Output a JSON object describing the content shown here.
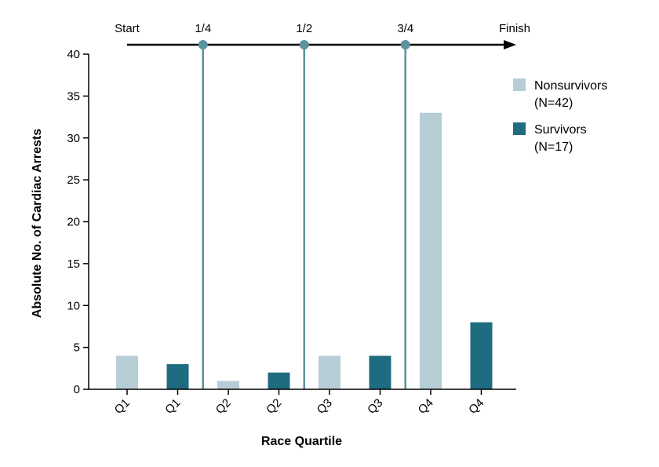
{
  "chart_data": {
    "type": "bar",
    "categories": [
      "Q1",
      "Q1",
      "Q2",
      "Q2",
      "Q3",
      "Q3",
      "Q4",
      "Q4"
    ],
    "values": [
      4,
      3,
      1,
      2,
      4,
      4,
      33,
      8
    ],
    "bar_series": [
      "nonsurvivors",
      "survivors",
      "nonsurvivors",
      "survivors",
      "nonsurvivors",
      "survivors",
      "nonsurvivors",
      "survivors"
    ],
    "series": [
      {
        "key": "nonsurvivors",
        "name": "Nonsurvivors",
        "count_label": "(N=42)",
        "color": "#b7cdd6"
      },
      {
        "key": "survivors",
        "name": "Survivors",
        "count_label": "(N=17)",
        "color": "#1f6b80"
      }
    ],
    "xlabel": "Race Quartile",
    "ylabel": "Absolute No. of Cardiac Arrests",
    "ylim": [
      0,
      40
    ],
    "yticks": [
      0,
      5,
      10,
      15,
      20,
      25,
      30,
      35,
      40
    ],
    "legend_position": "top-right",
    "grid": false,
    "progress_axis": {
      "labels": [
        "Start",
        "1/4",
        "1/2",
        "3/4",
        "Finish"
      ],
      "markers": [
        {
          "label": "1/4",
          "after_bar": 1
        },
        {
          "label": "1/2",
          "after_bar": 3
        },
        {
          "label": "3/4",
          "after_bar": 5
        }
      ],
      "line_color": "#5b929e"
    }
  }
}
